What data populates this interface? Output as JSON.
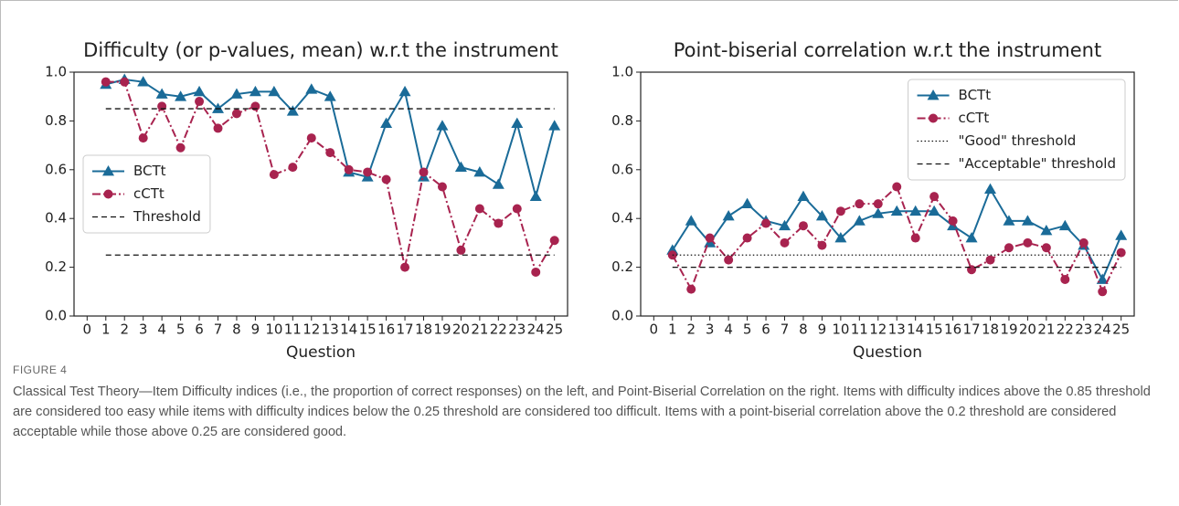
{
  "figure": {
    "label": "FIGURE 4",
    "caption": "Classical Test Theory—Item Difficulty indices (i.e., the proportion of correct responses) on the left, and Point-Biserial Correlation on the right. Items with difficulty indices above the 0.85 threshold are considered too easy while items with difficulty indices below the 0.25 threshold are considered too difficult. Items with a point-biserial correlation above the 0.2 threshold are considered acceptable while those above 0.25 are considered good."
  },
  "chart_data": [
    {
      "type": "line",
      "title": "Difficulty (or p-values, mean) w.r.t the instrument",
      "x_label": "Question",
      "x": [
        1,
        2,
        3,
        4,
        5,
        6,
        7,
        8,
        9,
        10,
        11,
        12,
        13,
        14,
        15,
        16,
        17,
        18,
        19,
        20,
        21,
        22,
        23,
        24,
        25
      ],
      "xlim": [
        -0.7,
        25.7
      ],
      "xticks": [
        0,
        1,
        2,
        3,
        4,
        5,
        6,
        7,
        8,
        9,
        10,
        11,
        12,
        13,
        14,
        15,
        16,
        17,
        18,
        19,
        20,
        21,
        22,
        23,
        24,
        25
      ],
      "ylim": [
        0,
        1.0
      ],
      "yticks": [
        {
          "value": 0,
          "label": "0.0"
        },
        0.2,
        0.4,
        0.6,
        0.8,
        {
          "value": 1.0,
          "label": "1.0"
        }
      ],
      "legend": "center left",
      "series": [
        {
          "name": "BCTt",
          "color": "#1a6b98",
          "style": "solid",
          "marker": "triangle",
          "values": [
            0.95,
            0.97,
            0.96,
            0.91,
            0.9,
            0.92,
            0.85,
            0.91,
            0.92,
            0.92,
            0.84,
            0.93,
            0.9,
            0.59,
            0.57,
            0.79,
            0.92,
            0.57,
            0.78,
            0.61,
            0.59,
            0.54,
            0.79,
            0.49,
            0.78
          ]
        },
        {
          "name": "cCTt",
          "color": "#a8234f",
          "style": "dashdot",
          "marker": "circle",
          "values": [
            0.96,
            0.96,
            0.73,
            0.86,
            0.69,
            0.88,
            0.77,
            0.83,
            0.86,
            0.58,
            0.61,
            0.73,
            0.67,
            0.6,
            0.59,
            0.56,
            0.2,
            0.59,
            0.53,
            0.27,
            0.44,
            0.38,
            0.44,
            0.18,
            0.31
          ]
        }
      ],
      "thresholds": [
        {
          "name": "Threshold",
          "color": "#111111",
          "style": "dashed",
          "values": [
            0.85,
            0.25
          ]
        }
      ]
    },
    {
      "type": "line",
      "title": "Point-biserial correlation w.r.t the instrument",
      "x_label": "Question",
      "x": [
        1,
        2,
        3,
        4,
        5,
        6,
        7,
        8,
        9,
        10,
        11,
        12,
        13,
        14,
        15,
        16,
        17,
        18,
        19,
        20,
        21,
        22,
        23,
        24,
        25
      ],
      "xlim": [
        -0.7,
        25.7
      ],
      "xticks": [
        0,
        1,
        2,
        3,
        4,
        5,
        6,
        7,
        8,
        9,
        10,
        11,
        12,
        13,
        14,
        15,
        16,
        17,
        18,
        19,
        20,
        21,
        22,
        23,
        24,
        25
      ],
      "ylim": [
        0,
        1.0
      ],
      "yticks": [
        {
          "value": 0,
          "label": "0.0"
        },
        0.2,
        0.4,
        0.6,
        0.8,
        {
          "value": 1.0,
          "label": "1.0"
        }
      ],
      "legend": "upper right",
      "series": [
        {
          "name": "BCTt",
          "color": "#1a6b98",
          "style": "solid",
          "marker": "triangle",
          "values": [
            0.27,
            0.39,
            0.3,
            0.41,
            0.46,
            0.39,
            0.37,
            0.49,
            0.41,
            0.32,
            0.39,
            0.42,
            0.43,
            0.43,
            0.43,
            0.37,
            0.32,
            0.52,
            0.39,
            0.39,
            0.35,
            0.37,
            0.29,
            0.15,
            0.33
          ]
        },
        {
          "name": "cCTt",
          "color": "#a8234f",
          "style": "dashdot",
          "marker": "circle",
          "values": [
            0.25,
            0.11,
            0.32,
            0.23,
            0.32,
            0.38,
            0.3,
            0.37,
            0.29,
            0.43,
            0.46,
            0.46,
            0.53,
            0.32,
            0.49,
            0.39,
            0.19,
            0.23,
            0.28,
            0.3,
            0.28,
            0.15,
            0.3,
            0.1,
            0.26
          ]
        }
      ],
      "thresholds": [
        {
          "name": "\"Good\" threshold",
          "color": "#111111",
          "style": "dotted",
          "values": [
            0.25
          ]
        },
        {
          "name": "\"Acceptable\" threshold",
          "color": "#111111",
          "style": "dashed",
          "values": [
            0.2
          ]
        }
      ]
    }
  ]
}
